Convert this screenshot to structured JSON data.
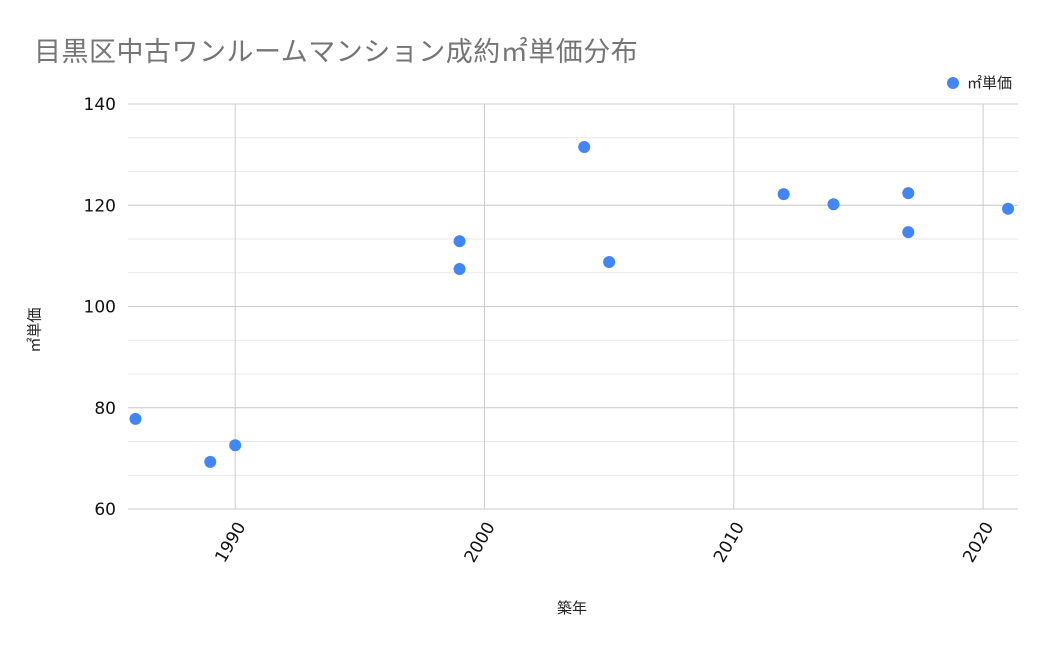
{
  "chart": {
    "title": "目黒区中古ワンルームマンション成約㎡単価分布",
    "legend_label": "㎡単価",
    "xlabel": "築年",
    "ylabel": "㎡単価",
    "point_color": "#4285f4"
  },
  "chart_data": {
    "type": "scatter",
    "title": "目黒区中古ワンルームマンション成約㎡単価分布",
    "xlabel": "築年",
    "ylabel": "㎡単価",
    "xlim": [
      1985.7,
      2021.4
    ],
    "ylim": [
      60,
      140
    ],
    "x_ticks": [
      1990,
      2000,
      2010,
      2020
    ],
    "y_ticks": [
      60,
      80,
      100,
      120,
      140
    ],
    "grid": true,
    "legend_position": "top-right",
    "series": [
      {
        "name": "㎡単価",
        "color": "#4285f4",
        "points": [
          {
            "x": 1986,
            "y": 77.8
          },
          {
            "x": 1989,
            "y": 69.3
          },
          {
            "x": 1990,
            "y": 72.6
          },
          {
            "x": 1999,
            "y": 112.9
          },
          {
            "x": 1999,
            "y": 107.4
          },
          {
            "x": 2004,
            "y": 131.5
          },
          {
            "x": 2005,
            "y": 108.8
          },
          {
            "x": 2012,
            "y": 122.2
          },
          {
            "x": 2014,
            "y": 120.2
          },
          {
            "x": 2017,
            "y": 122.4
          },
          {
            "x": 2017,
            "y": 114.7
          },
          {
            "x": 2021,
            "y": 119.3
          }
        ]
      }
    ]
  }
}
